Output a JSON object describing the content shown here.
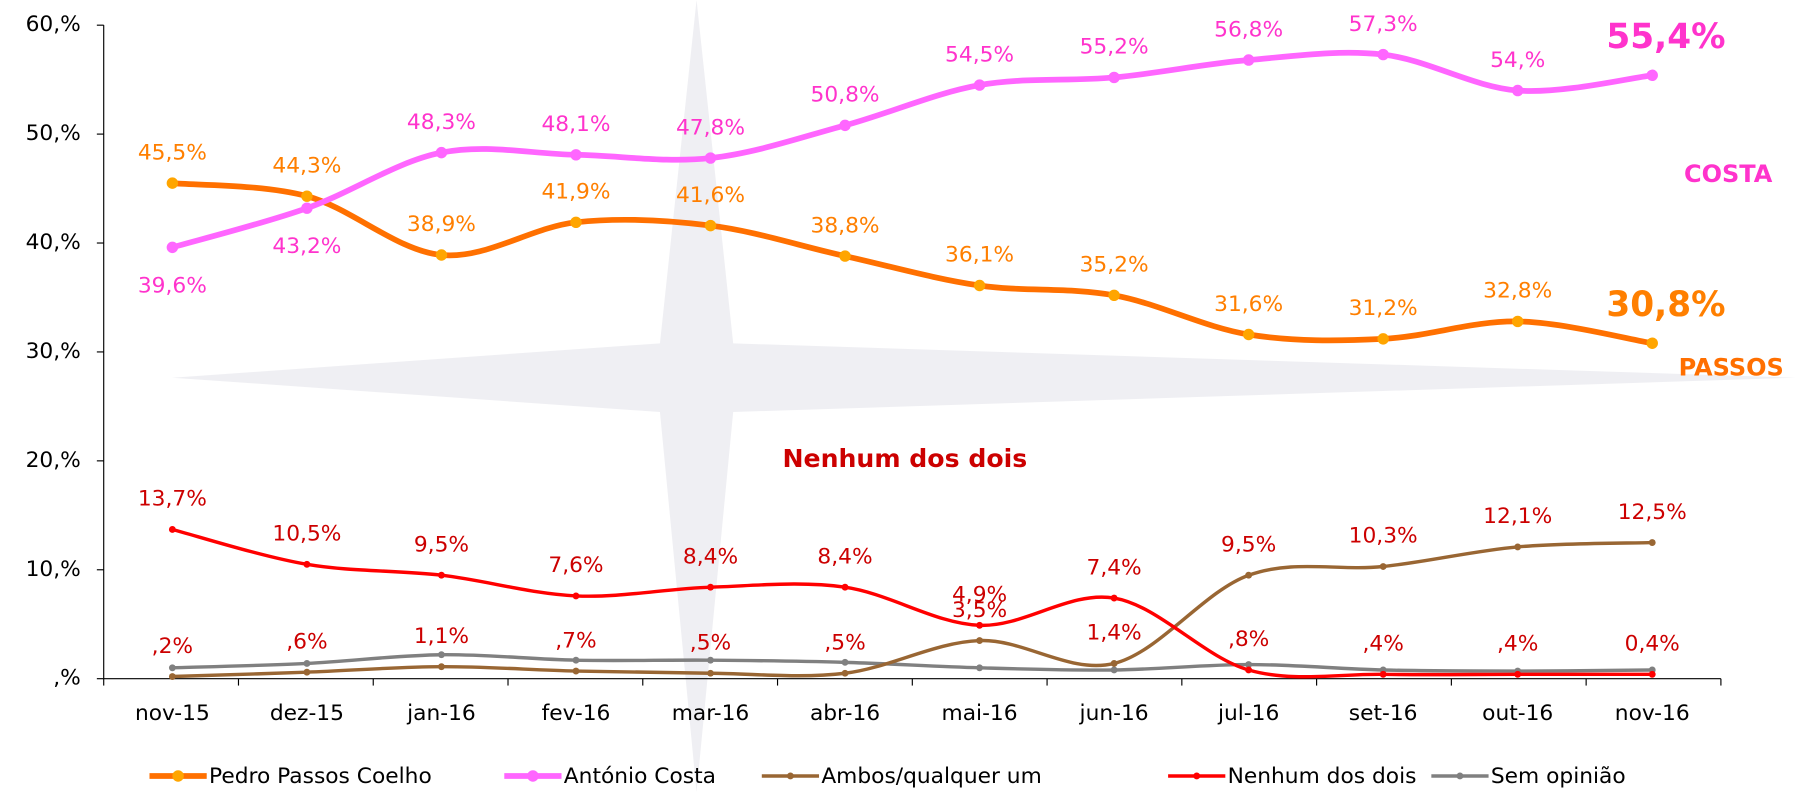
{
  "chart_data": {
    "type": "line",
    "categories": [
      "nov-15",
      "dez-15",
      "jan-16",
      "fev-16",
      "mar-16",
      "abr-16",
      "mai-16",
      "jun-16",
      "jul-16",
      "set-16",
      "out-16",
      "nov-16"
    ],
    "series": [
      {
        "name": "Pedro Passos Coelho",
        "color": "#ff7000",
        "values": [
          45.5,
          44.3,
          38.9,
          41.9,
          41.6,
          38.8,
          36.1,
          35.2,
          31.6,
          31.2,
          32.8,
          30.8
        ],
        "value_labels": [
          "45,5%",
          "44,3%",
          "38,9%",
          "41,9%",
          "41,6%",
          "38,8%",
          "36,1%",
          "35,2%",
          "31,6%",
          "31,2%",
          "32,8%",
          "30,8%"
        ]
      },
      {
        "name": "António Costa",
        "color": "#ff66ff",
        "values": [
          39.6,
          43.2,
          48.3,
          48.1,
          47.8,
          50.8,
          54.5,
          55.2,
          56.8,
          57.3,
          54.0,
          55.4
        ],
        "value_labels": [
          "39,6%",
          "43,2%",
          "48,3%",
          "48,1%",
          "47,8%",
          "50,8%",
          "54,5%",
          "55,2%",
          "56,8%",
          "57,3%",
          "54,%",
          "55,4%"
        ]
      },
      {
        "name": "Ambos/qualquer um",
        "color": "#996633",
        "values": [
          0.2,
          0.6,
          1.1,
          0.7,
          0.5,
          0.5,
          3.5,
          1.4,
          9.5,
          10.3,
          12.1,
          12.5
        ],
        "value_labels": [
          ",2%",
          ",6%",
          "1,1%",
          ",7%",
          ",5%",
          ",5%",
          "3,5%",
          "1,4%",
          "9,5%",
          "10,3%",
          "12,1%",
          "12,5%"
        ]
      },
      {
        "name": "Nenhum dos dois",
        "color": "#ff0000",
        "values": [
          13.7,
          10.5,
          9.5,
          7.6,
          8.4,
          8.4,
          4.9,
          7.4,
          0.8,
          0.4,
          0.4,
          0.4
        ],
        "value_labels": [
          "13,7%",
          "10,5%",
          "9,5%",
          "7,6%",
          "8,4%",
          "8,4%",
          "4,9%",
          "7,4%",
          ",8%",
          ",4%",
          ",4%",
          "0,4%"
        ]
      },
      {
        "name": "Sem opinião",
        "color": "#808080",
        "values": [
          1.0,
          1.4,
          2.2,
          1.7,
          1.7,
          1.5,
          1.0,
          0.8,
          1.3,
          0.8,
          0.7,
          0.8
        ]
      }
    ],
    "ylim": [
      0,
      60
    ],
    "yticks": [
      {
        "value": 0,
        "label": ",%"
      },
      {
        "value": 10,
        "label": "10,%"
      },
      {
        "value": 20,
        "label": "20,%"
      },
      {
        "value": 30,
        "label": "30,%"
      },
      {
        "value": 40,
        "label": "40,%"
      },
      {
        "value": 50,
        "label": "50,%"
      },
      {
        "value": 60,
        "label": "60,%"
      }
    ],
    "annotations": [
      "COSTA",
      "PASSOS",
      "Nenhum dos dois"
    ]
  }
}
